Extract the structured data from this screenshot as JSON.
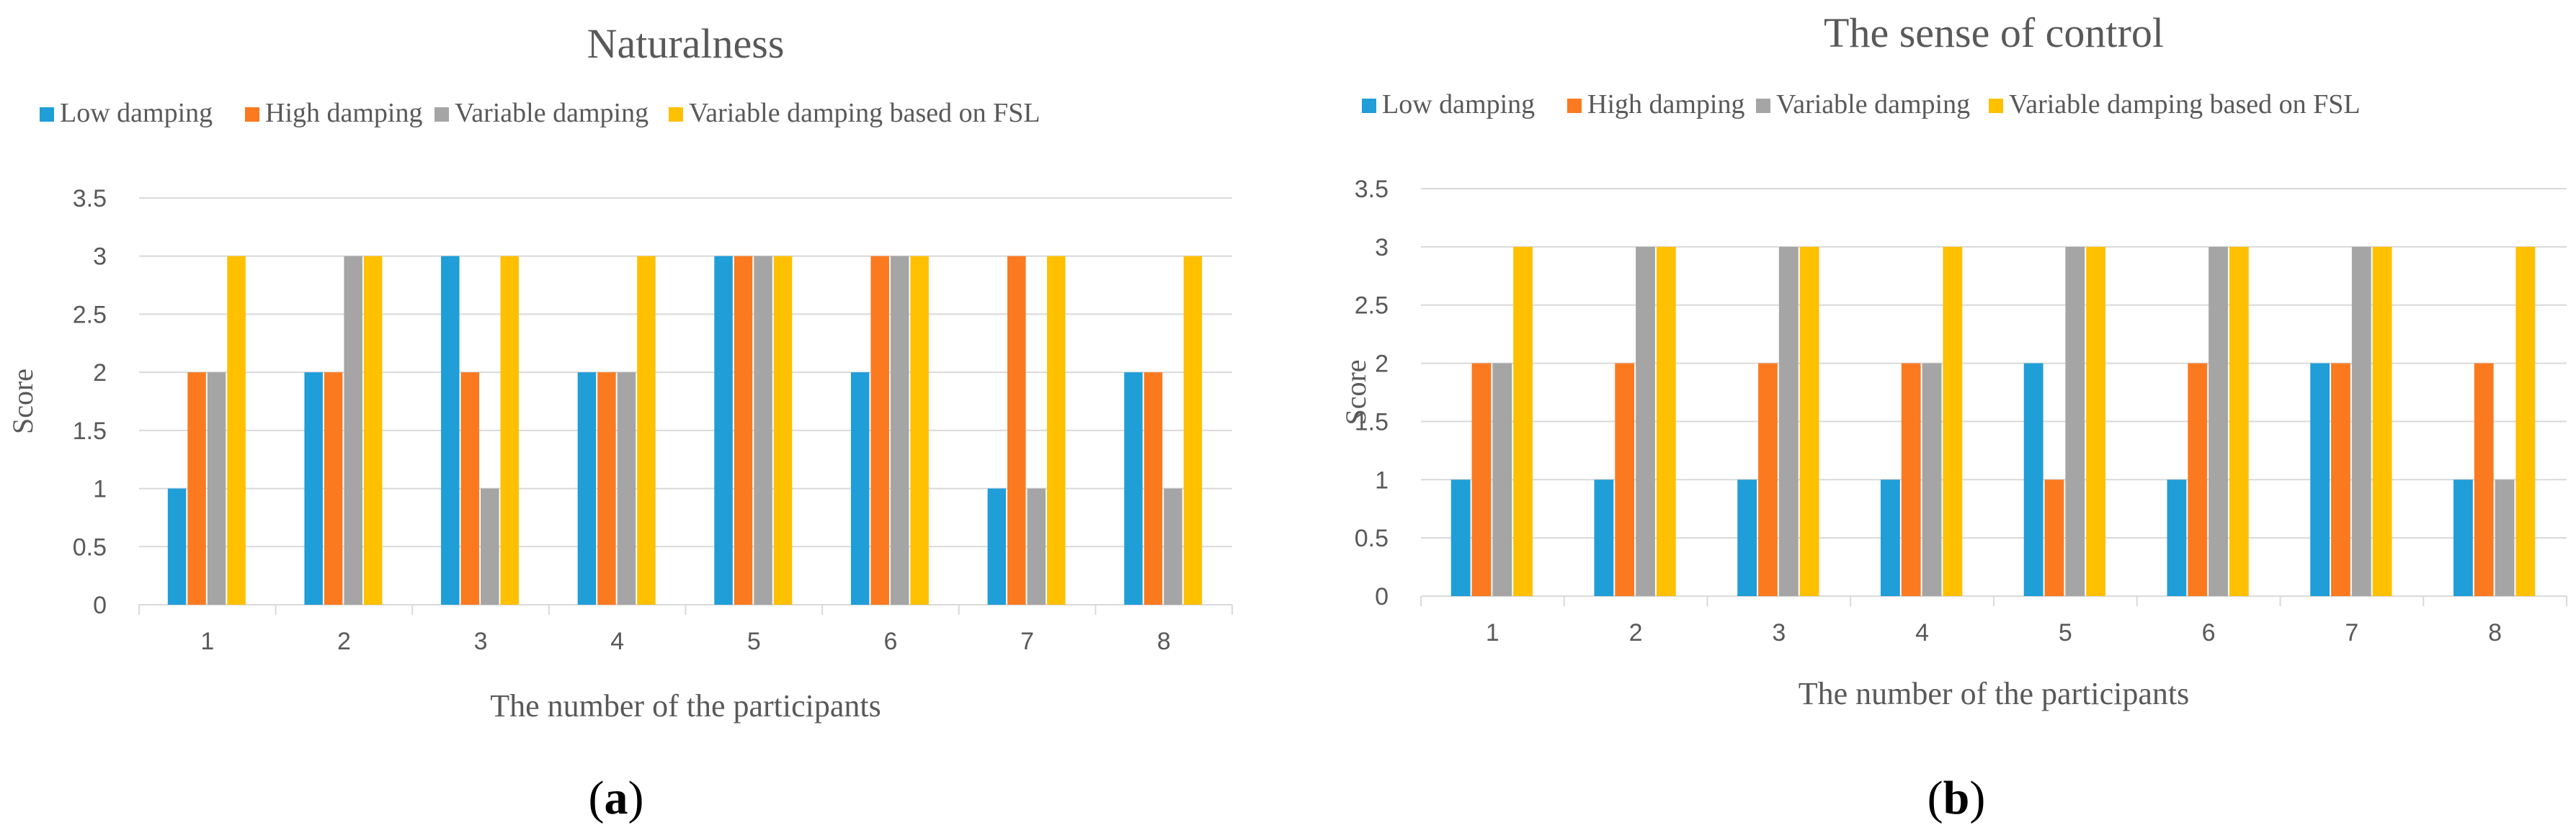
{
  "figure": {
    "series_colors": [
      "#1f9ed8",
      "#fb7a20",
      "#a5a5a5",
      "#ffc000"
    ],
    "axis_color": "#d9d9d9",
    "text_color": "#595959"
  },
  "chart_data": [
    {
      "panel_label": "a",
      "type": "bar",
      "title": "Naturalness",
      "xlabel": "The number of the participants",
      "ylabel": "Score",
      "ylim": [
        0,
        3.5
      ],
      "yticks": [
        "0",
        "0.5",
        "1",
        "1.5",
        "2",
        "2.5",
        "3",
        "3.5"
      ],
      "categories": [
        "1",
        "2",
        "3",
        "4",
        "5",
        "6",
        "7",
        "8"
      ],
      "grid": true,
      "legend_position": "top",
      "series": [
        {
          "name": "Low damping",
          "values": [
            1,
            2,
            3,
            2,
            3,
            2,
            1,
            2
          ]
        },
        {
          "name": "High damping",
          "values": [
            2,
            2,
            2,
            2,
            3,
            3,
            3,
            2
          ]
        },
        {
          "name": "Variable damping",
          "values": [
            2,
            3,
            1,
            2,
            3,
            3,
            1,
            1
          ]
        },
        {
          "name": "Variable damping based on FSL",
          "values": [
            3,
            3,
            3,
            3,
            3,
            3,
            3,
            3
          ]
        }
      ]
    },
    {
      "panel_label": "b",
      "type": "bar",
      "title": "The sense of control",
      "xlabel": "The number of the participants",
      "ylabel": "Score",
      "ylim": [
        0,
        3.5
      ],
      "yticks": [
        "0",
        "0.5",
        "1",
        "1.5",
        "2",
        "2.5",
        "3",
        "3.5"
      ],
      "categories": [
        "1",
        "2",
        "3",
        "4",
        "5",
        "6",
        "7",
        "8"
      ],
      "grid": true,
      "legend_position": "top",
      "series": [
        {
          "name": "Low damping",
          "values": [
            1,
            1,
            1,
            1,
            2,
            1,
            2,
            1
          ]
        },
        {
          "name": "High damping",
          "values": [
            2,
            2,
            2,
            2,
            1,
            2,
            2,
            2
          ]
        },
        {
          "name": "Variable damping",
          "values": [
            2,
            3,
            3,
            2,
            3,
            3,
            3,
            1
          ]
        },
        {
          "name": "Variable damping based on FSL",
          "values": [
            3,
            3,
            3,
            3,
            3,
            3,
            3,
            3
          ]
        }
      ]
    }
  ]
}
